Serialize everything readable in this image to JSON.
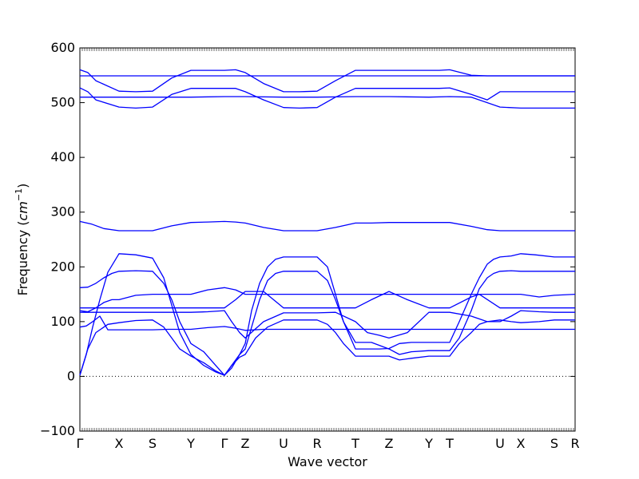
{
  "chart_data": {
    "type": "line",
    "title": "",
    "xlabel": "Wave vector",
    "ylabel": "Frequency",
    "ylabel_unit_main": "cm",
    "ylabel_unit_exp": "−1",
    "ylim": [
      -100,
      600
    ],
    "yticks": [
      -100,
      0,
      100,
      200,
      300,
      400,
      500,
      600
    ],
    "grid": false,
    "zero_line": true,
    "line_color": "#0000ff",
    "x_points": [
      {
        "label": "Γ",
        "x": 0
      },
      {
        "label": "X",
        "x": 49
      },
      {
        "label": "S",
        "x": 91
      },
      {
        "label": "Y",
        "x": 139
      },
      {
        "label": "Γ",
        "x": 181
      },
      {
        "label": "Z",
        "x": 207
      },
      {
        "label": "U",
        "x": 255
      },
      {
        "label": "R",
        "x": 297
      },
      {
        "label": "T",
        "x": 345
      },
      {
        "label": "Z",
        "x": 387
      },
      {
        "label": "Y",
        "x": 437
      },
      {
        "label": "T",
        "x": 463
      },
      {
        "label": "U",
        "x": 526
      },
      {
        "label": "X",
        "x": 552
      },
      {
        "label": "S",
        "x": 594
      },
      {
        "label": "R",
        "x": 620
      }
    ],
    "x_range": [
      0,
      620
    ],
    "series": [
      {
        "x": [
          0,
          10,
          20,
          49,
          70,
          91,
          115,
          139,
          160,
          181,
          195,
          207,
          230,
          255,
          275,
          297,
          320,
          345,
          365,
          387,
          410,
          437,
          450,
          463,
          490,
          510,
          526,
          540,
          552,
          575,
          594,
          620
        ],
        "y": [
          560,
          555,
          540,
          521,
          520,
          521,
          545,
          559,
          559,
          559,
          560,
          555,
          535,
          520,
          520,
          521,
          540,
          559,
          559,
          559,
          559,
          559,
          559,
          560,
          550,
          549,
          549,
          549,
          549,
          549,
          549,
          549
        ]
      },
      {
        "x": [
          0,
          49,
          91,
          139,
          181,
          207,
          255,
          297,
          345,
          387,
          437,
          463,
          526,
          552,
          594,
          620
        ],
        "y": [
          549,
          549,
          549,
          549,
          549,
          549,
          549,
          549,
          549,
          549,
          549,
          549,
          549,
          549,
          549,
          549
        ]
      },
      {
        "x": [
          0,
          10,
          20,
          49,
          70,
          91,
          115,
          139,
          160,
          181,
          195,
          207,
          230,
          255,
          275,
          297,
          320,
          345,
          365,
          387,
          410,
          437,
          450,
          463,
          490,
          510,
          526,
          540,
          552,
          575,
          594,
          620
        ],
        "y": [
          527,
          520,
          505,
          492,
          490,
          492,
          515,
          526,
          526,
          526,
          526,
          520,
          505,
          491,
          490,
          491,
          510,
          526,
          526,
          526,
          526,
          526,
          526,
          527,
          515,
          505,
          520,
          520,
          520,
          520,
          520,
          520
        ]
      },
      {
        "x": [
          0,
          49,
          91,
          139,
          181,
          207,
          255,
          297,
          345,
          387,
          437,
          463,
          490,
          526,
          552,
          594,
          620
        ],
        "y": [
          510,
          510,
          510,
          510,
          511,
          511,
          510,
          510,
          511,
          511,
          510,
          511,
          510,
          492,
          490,
          490,
          490
        ]
      },
      {
        "x": [
          0,
          15,
          30,
          49,
          70,
          91,
          115,
          139,
          160,
          181,
          195,
          207,
          230,
          255,
          275,
          297,
          320,
          345,
          365,
          387,
          410,
          437,
          450,
          463,
          490,
          510,
          526,
          540,
          552,
          575,
          594,
          620
        ],
        "y": [
          283,
          278,
          270,
          266,
          266,
          266,
          275,
          281,
          282,
          283,
          282,
          280,
          272,
          266,
          266,
          266,
          272,
          280,
          280,
          281,
          281,
          281,
          281,
          281,
          274,
          268,
          266,
          266,
          266,
          266,
          266,
          266
        ]
      },
      {
        "x": [
          0,
          8,
          16,
          25,
          35,
          49,
          70,
          91,
          105,
          115,
          125,
          139,
          155,
          170,
          181,
          190,
          200,
          207,
          215,
          225,
          235,
          245,
          255,
          275,
          297,
          310,
          320,
          330,
          345,
          355,
          365,
          375,
          387,
          400,
          415,
          437,
          450,
          463,
          475,
          490,
          500,
          510,
          518,
          526,
          540,
          552,
          570,
          594,
          620
        ],
        "y": [
          2,
          40,
          90,
          140,
          190,
          224,
          222,
          216,
          180,
          130,
          80,
          40,
          20,
          8,
          2,
          15,
          40,
          60,
          120,
          170,
          200,
          214,
          218,
          218,
          218,
          200,
          150,
          100,
          50,
          50,
          50,
          50,
          51,
          60,
          62,
          62,
          62,
          62,
          100,
          150,
          180,
          205,
          214,
          218,
          220,
          224,
          222,
          218,
          218
        ]
      },
      {
        "x": [
          0,
          10,
          20,
          30,
          40,
          49,
          70,
          91,
          105,
          115,
          125,
          139,
          155,
          170,
          181,
          190,
          200,
          207,
          215,
          225,
          235,
          245,
          255,
          275,
          297,
          310,
          320,
          330,
          345,
          365,
          387,
          400,
          415,
          437,
          450,
          463,
          475,
          490,
          500,
          510,
          518,
          526,
          540,
          552,
          594,
          620
        ],
        "y": [
          162,
          163,
          170,
          180,
          188,
          192,
          193,
          192,
          170,
          140,
          100,
          60,
          45,
          20,
          2,
          20,
          40,
          50,
          90,
          140,
          175,
          188,
          192,
          192,
          192,
          175,
          140,
          100,
          62,
          62,
          50,
          40,
          45,
          47,
          47,
          47,
          70,
          120,
          160,
          180,
          188,
          192,
          193,
          192,
          192,
          192
        ]
      },
      {
        "x": [
          0,
          10,
          20,
          30,
          40,
          49,
          70,
          91,
          110,
          125,
          139,
          160,
          181,
          195,
          207,
          230,
          255,
          275,
          297,
          320,
          345,
          365,
          387,
          410,
          437,
          450,
          463,
          480,
          500,
          526,
          540,
          552,
          575,
          594,
          620
        ],
        "y": [
          120,
          118,
          125,
          135,
          140,
          140,
          148,
          150,
          150,
          150,
          150,
          158,
          162,
          158,
          150,
          150,
          150,
          150,
          150,
          150,
          150,
          150,
          150,
          150,
          150,
          150,
          150,
          150,
          150,
          150,
          150,
          150,
          145,
          148,
          150
        ]
      },
      {
        "x": [
          0,
          49,
          91,
          139,
          160,
          181,
          195,
          207,
          230,
          255,
          297,
          320,
          345,
          365,
          387,
          410,
          437,
          463,
          490,
          500,
          526,
          540,
          552,
          575,
          594,
          620
        ],
        "y": [
          125,
          125,
          125,
          125,
          125,
          125,
          140,
          155,
          155,
          125,
          125,
          125,
          125,
          140,
          155,
          140,
          125,
          125,
          145,
          150,
          125,
          125,
          125,
          125,
          125,
          125
        ]
      },
      {
        "x": [
          0,
          49,
          91,
          139,
          160,
          181,
          190,
          200,
          207,
          230,
          255,
          297,
          320,
          345,
          360,
          375,
          387,
          410,
          437,
          463,
          490,
          510,
          526,
          540,
          552,
          575,
          594,
          620
        ],
        "y": [
          117,
          117,
          117,
          117,
          118,
          120,
          100,
          80,
          70,
          100,
          116,
          116,
          117,
          100,
          80,
          75,
          70,
          80,
          117,
          117,
          110,
          100,
          100,
          110,
          120,
          118,
          117,
          117
        ]
      },
      {
        "x": [
          0,
          10,
          20,
          35,
          49,
          70,
          91,
          105,
          115,
          125,
          139,
          155,
          170,
          181,
          190,
          200,
          207,
          220,
          235,
          255,
          275,
          297,
          310,
          320,
          330,
          345,
          365,
          387,
          400,
          415,
          437,
          450,
          463,
          475,
          490,
          500,
          510,
          526,
          540,
          552,
          575,
          594,
          620
        ],
        "y": [
          2,
          50,
          80,
          95,
          98,
          102,
          103,
          90,
          70,
          50,
          37,
          25,
          10,
          2,
          20,
          35,
          40,
          70,
          90,
          103,
          103,
          103,
          95,
          80,
          60,
          37,
          37,
          37,
          30,
          33,
          37,
          37,
          37,
          60,
          80,
          95,
          100,
          103,
          100,
          98,
          100,
          103,
          103
        ]
      },
      {
        "x": [
          0,
          8,
          16,
          25,
          35,
          49,
          70,
          91,
          110,
          125,
          139,
          160,
          181,
          195,
          207,
          230,
          255,
          297,
          320,
          345,
          365,
          387,
          410,
          437,
          463,
          490,
          526,
          552,
          594,
          620
        ],
        "y": [
          90,
          92,
          100,
          110,
          85,
          85,
          85,
          85,
          86,
          86,
          86,
          89,
          91,
          88,
          84,
          86,
          86,
          86,
          86,
          86,
          86,
          86,
          86,
          86,
          86,
          86,
          86,
          86,
          86,
          86
        ]
      }
    ]
  }
}
